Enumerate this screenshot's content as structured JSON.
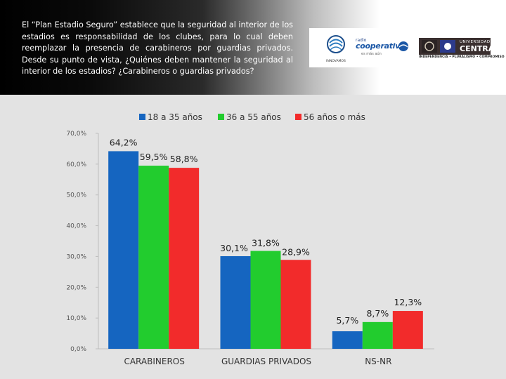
{
  "question": "El “Plan Estadio Seguro” establece que la seguridad al interior de los estadios es responsabilidad de los clubes, para lo cual deben reemplazar la presencia de carabineros por guardias privados. Desde su punto de vista, ¿Quiénes deben mantener la seguridad al interior de los estadios? ¿Carabineros o guardias privados?",
  "logos": {
    "institute": "INNOVAMOS",
    "cooperativa": {
      "radio": "radio",
      "name": "cooperativa",
      "tagline": "es más aún"
    },
    "universidad": {
      "line1": "UNIVERSIDAD",
      "line2": "CENTRAL",
      "motto": "INDEPENDENCIA • PLURALISMO • COMPROMISO"
    }
  },
  "chart_data": {
    "type": "bar",
    "categories": [
      "CARABINEROS",
      "GUARDIAS PRIVADOS",
      "NS-NR"
    ],
    "series": [
      {
        "name": "18 a 35 años",
        "color": "#1565c0",
        "values": [
          64.2,
          30.1,
          5.7
        ],
        "labels": [
          "64,2%",
          "30,1%",
          "5,7%"
        ]
      },
      {
        "name": "36 a 55 años",
        "color": "#22cc2e",
        "values": [
          59.5,
          31.8,
          8.7
        ],
        "labels": [
          "59,5%",
          "31,8%",
          "8,7%"
        ]
      },
      {
        "name": "56 años o más",
        "color": "#f22b2b",
        "values": [
          58.8,
          28.9,
          12.3
        ],
        "labels": [
          "58,8%",
          "28,9%",
          "12,3%"
        ]
      }
    ],
    "ylim": [
      0,
      70
    ],
    "yticks": [
      0,
      10,
      20,
      30,
      40,
      50,
      60,
      70
    ],
    "ytick_labels": [
      "0,0%",
      "10,0%",
      "20,0%",
      "30,0%",
      "40,0%",
      "50,0%",
      "60,0%",
      "70,0%"
    ],
    "legend_position": "top",
    "grid": false
  }
}
